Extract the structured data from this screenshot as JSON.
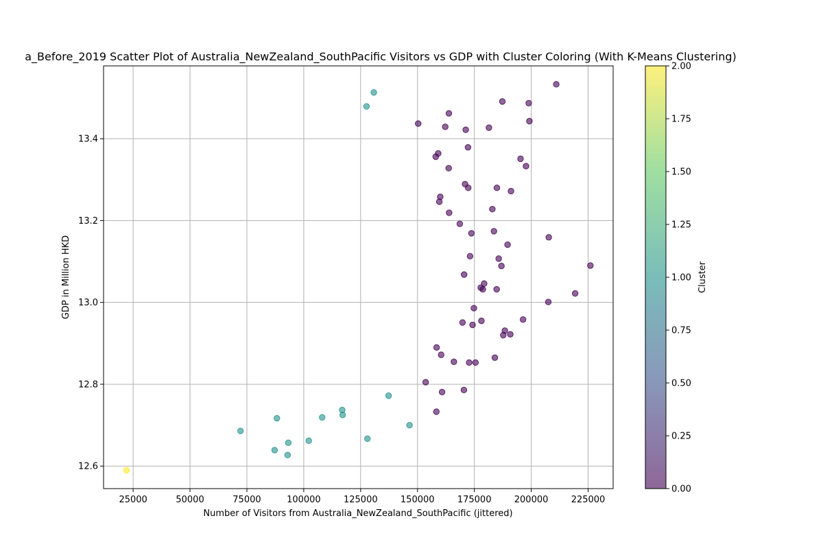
{
  "chart_data": {
    "type": "scatter",
    "title": "a_Before_2019 Scatter Plot of Australia_NewZealand_SouthPacific Visitors vs GDP with Cluster Coloring (With K-Means Clustering)",
    "xlabel": "Number of Visitors from Australia_NewZealand_SouthPacific (jittered)",
    "ylabel": "GDP in Million HKD",
    "xlim": [
      12000,
      236000
    ],
    "ylim": [
      12.545,
      13.578
    ],
    "x_ticks": [
      25000,
      50000,
      75000,
      100000,
      125000,
      150000,
      175000,
      200000,
      225000
    ],
    "x_tick_labels": [
      "25000",
      "50000",
      "75000",
      "100000",
      "125000",
      "150000",
      "175000",
      "200000",
      "225000"
    ],
    "y_ticks": [
      12.6,
      12.8,
      13.0,
      13.2,
      13.4
    ],
    "y_tick_labels": [
      "12.6",
      "12.8",
      "13.0",
      "13.2",
      "13.4"
    ],
    "grid": true,
    "colorbar": {
      "label": "Cluster",
      "range": [
        0,
        2
      ],
      "ticks": [
        0.0,
        0.25,
        0.5,
        0.75,
        1.0,
        1.25,
        1.5,
        1.75,
        2.0
      ],
      "tick_labels": [
        "0.00",
        "0.25",
        "0.50",
        "0.75",
        "1.00",
        "1.25",
        "1.50",
        "1.75",
        "2.00"
      ],
      "colors": [
        "#440154",
        "#3b528b",
        "#21918c",
        "#5ec962",
        "#fde725"
      ]
    },
    "point_alpha": 0.6,
    "series": [
      {
        "cluster": 0,
        "color": "#440154",
        "points": [
          [
            211000,
            13.533
          ],
          [
            187300,
            13.491
          ],
          [
            198900,
            13.487
          ],
          [
            163800,
            13.462
          ],
          [
            199200,
            13.443
          ],
          [
            150300,
            13.437
          ],
          [
            162200,
            13.429
          ],
          [
            181400,
            13.427
          ],
          [
            171200,
            13.422
          ],
          [
            172200,
            13.379
          ],
          [
            159100,
            13.364
          ],
          [
            158000,
            13.356
          ],
          [
            195300,
            13.351
          ],
          [
            197700,
            13.333
          ],
          [
            163700,
            13.328
          ],
          [
            170900,
            13.289
          ],
          [
            172300,
            13.28
          ],
          [
            184900,
            13.28
          ],
          [
            191100,
            13.272
          ],
          [
            160000,
            13.258
          ],
          [
            159600,
            13.246
          ],
          [
            182900,
            13.228
          ],
          [
            163900,
            13.219
          ],
          [
            168600,
            13.192
          ],
          [
            183600,
            13.174
          ],
          [
            173700,
            13.169
          ],
          [
            207700,
            13.159
          ],
          [
            189600,
            13.141
          ],
          [
            173100,
            13.113
          ],
          [
            185700,
            13.107
          ],
          [
            226000,
            13.09
          ],
          [
            186900,
            13.089
          ],
          [
            170500,
            13.068
          ],
          [
            179300,
            13.046
          ],
          [
            177800,
            13.036
          ],
          [
            178700,
            13.032
          ],
          [
            184800,
            13.032
          ],
          [
            219300,
            13.022
          ],
          [
            207500,
            13.001
          ],
          [
            174800,
            12.986
          ],
          [
            196400,
            12.958
          ],
          [
            178100,
            12.955
          ],
          [
            169800,
            12.951
          ],
          [
            174200,
            12.945
          ],
          [
            188400,
            12.931
          ],
          [
            190800,
            12.922
          ],
          [
            187700,
            12.92
          ],
          [
            158400,
            12.89
          ],
          [
            160400,
            12.872
          ],
          [
            184000,
            12.865
          ],
          [
            166000,
            12.855
          ],
          [
            172700,
            12.853
          ],
          [
            175500,
            12.853
          ],
          [
            153600,
            12.805
          ],
          [
            160800,
            12.781
          ],
          [
            170400,
            12.786
          ],
          [
            158300,
            12.733
          ]
        ]
      },
      {
        "cluster": 1,
        "color": "#21918c",
        "points": [
          [
            130800,
            13.513
          ],
          [
            127600,
            13.479
          ],
          [
            137300,
            12.772
          ],
          [
            116900,
            12.737
          ],
          [
            117100,
            12.725
          ],
          [
            88200,
            12.717
          ],
          [
            108100,
            12.719
          ],
          [
            146500,
            12.7
          ],
          [
            72200,
            12.686
          ],
          [
            128000,
            12.667
          ],
          [
            102200,
            12.662
          ],
          [
            93200,
            12.657
          ],
          [
            87200,
            12.639
          ],
          [
            92900,
            12.627
          ]
        ]
      },
      {
        "cluster": 2,
        "color": "#fde725",
        "points": [
          [
            22100,
            12.59
          ]
        ]
      }
    ]
  }
}
